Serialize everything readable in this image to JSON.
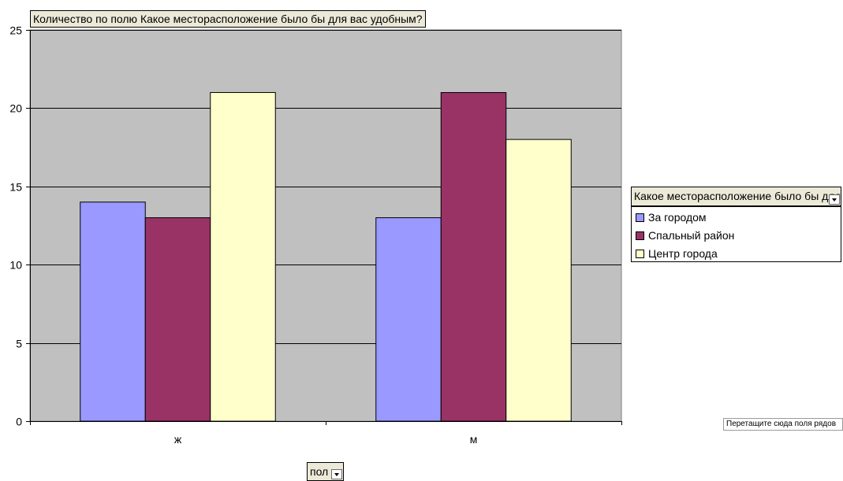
{
  "chart_data": {
    "type": "bar",
    "title": "",
    "xlabel": "",
    "ylabel": "",
    "categories": [
      "ж",
      "м"
    ],
    "series": [
      {
        "name": "За городом",
        "values": [
          14,
          13
        ],
        "color": "#9999ff"
      },
      {
        "name": "Спальный район",
        "values": [
          13,
          21
        ],
        "color": "#993366"
      },
      {
        "name": "Центр города",
        "values": [
          21,
          18
        ],
        "color": "#ffffcc"
      }
    ],
    "ylim": [
      0,
      25
    ],
    "yticks": [
      0,
      5,
      10,
      15,
      20,
      25
    ],
    "grid": true,
    "legend_position": "right",
    "plot_background": "#c0c0c0"
  },
  "pivot": {
    "data_field_label": "Количество по полю Какое месторасположение было бы для вас удобным?",
    "legend_field_label": "Какое месторасположение было бы для вас удобным?",
    "category_field_label": "пол",
    "drop_hint": "Перетащите сюда поля рядов"
  }
}
